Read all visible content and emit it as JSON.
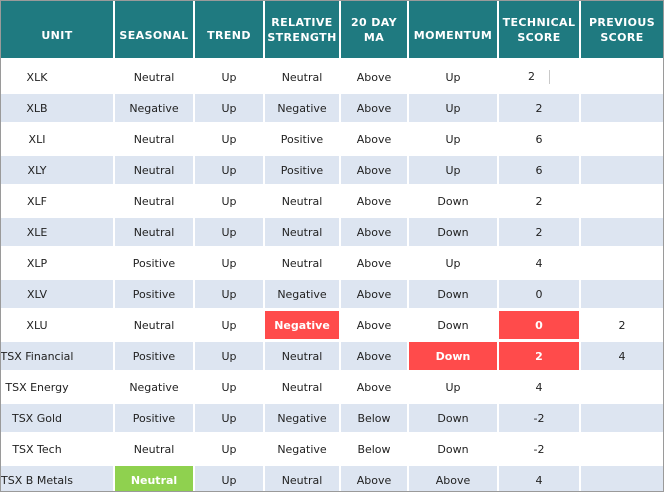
{
  "table": {
    "headers": [
      "UNIT",
      "SEASONAL",
      "TREND",
      "RELATIVE STRENGTH",
      "20 DAY MA",
      "MOMENTUM",
      "TECHNICAL SCORE",
      "PREVIOUS SCORE"
    ],
    "header_lines": [
      [
        "UNIT"
      ],
      [
        "SEASONAL"
      ],
      [
        "TREND"
      ],
      [
        "RELATIVE",
        "STRENGTH"
      ],
      [
        "20 DAY",
        "MA"
      ],
      [
        "MOMENTUM"
      ],
      [
        "TECHNICAL",
        "SCORE"
      ],
      [
        "PREVIOUS",
        "SCORE"
      ]
    ],
    "rows": [
      {
        "unit": "XLK",
        "seasonal": "Neutral",
        "trend": "Up",
        "relative_strength": "Neutral",
        "ma20": "Above",
        "momentum": "Up",
        "technical_score": "2",
        "previous_score": ""
      },
      {
        "unit": "XLB",
        "seasonal": "Negative",
        "trend": "Up",
        "relative_strength": "Negative",
        "ma20": "Above",
        "momentum": "Up",
        "technical_score": "2",
        "previous_score": ""
      },
      {
        "unit": "XLI",
        "seasonal": "Neutral",
        "trend": "Up",
        "relative_strength": "Positive",
        "ma20": "Above",
        "momentum": "Up",
        "technical_score": "6",
        "previous_score": ""
      },
      {
        "unit": "XLY",
        "seasonal": "Neutral",
        "trend": "Up",
        "relative_strength": "Positive",
        "ma20": "Above",
        "momentum": "Up",
        "technical_score": "6",
        "previous_score": ""
      },
      {
        "unit": "XLF",
        "seasonal": "Neutral",
        "trend": "Up",
        "relative_strength": "Neutral",
        "ma20": "Above",
        "momentum": "Down",
        "technical_score": "2",
        "previous_score": ""
      },
      {
        "unit": "XLE",
        "seasonal": "Neutral",
        "trend": "Up",
        "relative_strength": "Neutral",
        "ma20": "Above",
        "momentum": "Down",
        "technical_score": "2",
        "previous_score": ""
      },
      {
        "unit": "XLP",
        "seasonal": "Positive",
        "trend": "Up",
        "relative_strength": "Neutral",
        "ma20": "Above",
        "momentum": "Up",
        "technical_score": "4",
        "previous_score": ""
      },
      {
        "unit": "XLV",
        "seasonal": "Positive",
        "trend": "Up",
        "relative_strength": "Negative",
        "ma20": "Above",
        "momentum": "Down",
        "technical_score": "0",
        "previous_score": ""
      },
      {
        "unit": "XLU",
        "seasonal": "Neutral",
        "trend": "Up",
        "relative_strength": "Negative",
        "ma20": "Above",
        "momentum": "Down",
        "technical_score": "0",
        "previous_score": "2"
      },
      {
        "unit": "TSX Financial",
        "seasonal": "Positive",
        "trend": "Up",
        "relative_strength": "Neutral",
        "ma20": "Above",
        "momentum": "Down",
        "technical_score": "2",
        "previous_score": "4"
      },
      {
        "unit": "TSX Energy",
        "seasonal": "Negative",
        "trend": "Up",
        "relative_strength": "Neutral",
        "ma20": "Above",
        "momentum": "Up",
        "technical_score": "4",
        "previous_score": ""
      },
      {
        "unit": "TSX Gold",
        "seasonal": "Positive",
        "trend": "Up",
        "relative_strength": "Negative",
        "ma20": "Below",
        "momentum": "Down",
        "technical_score": "-2",
        "previous_score": ""
      },
      {
        "unit": "TSX Tech",
        "seasonal": "Neutral",
        "trend": "Up",
        "relative_strength": "Negative",
        "ma20": "Below",
        "momentum": "Down",
        "technical_score": "-2",
        "previous_score": ""
      },
      {
        "unit": "TSX B Metals",
        "seasonal": "Neutral",
        "trend": "Up",
        "relative_strength": "Neutral",
        "ma20": "Above",
        "momentum": "Above",
        "technical_score": "4",
        "previous_score": ""
      }
    ],
    "highlights": [
      {
        "row": 8,
        "column": "relative_strength",
        "color": "#ff4b4b"
      },
      {
        "row": 8,
        "column": "technical_score",
        "color": "#ff4b4b"
      },
      {
        "row": 9,
        "column": "momentum",
        "color": "#ff4b4b"
      },
      {
        "row": 9,
        "column": "technical_score",
        "color": "#ff4b4b"
      },
      {
        "row": 13,
        "column": "seasonal",
        "color": "#8fd14f"
      }
    ],
    "colors": {
      "header_bg": "#1f7a80",
      "header_text": "#ffffff",
      "band_bg": "#dde5f1",
      "negative_highlight": "#ff4b4b",
      "positive_highlight": "#8fd14f"
    }
  }
}
